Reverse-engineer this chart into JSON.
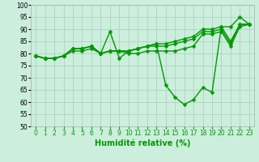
{
  "xlabel": "Humidité relative (%)",
  "background_color": "#cceedd",
  "grid_color": "#aaccbb",
  "line_color": "#009900",
  "xlim": [
    -0.5,
    23.5
  ],
  "ylim": [
    50,
    100
  ],
  "yticks": [
    50,
    55,
    60,
    65,
    70,
    75,
    80,
    85,
    90,
    95,
    100
  ],
  "xticks": [
    0,
    1,
    2,
    3,
    4,
    5,
    6,
    7,
    8,
    9,
    10,
    11,
    12,
    13,
    14,
    15,
    16,
    17,
    18,
    19,
    20,
    21,
    22,
    23
  ],
  "series": [
    [
      79,
      78,
      78,
      79,
      82,
      82,
      83,
      80,
      89,
      78,
      81,
      82,
      83,
      84,
      67,
      62,
      59,
      61,
      66,
      64,
      91,
      91,
      95,
      92
    ],
    [
      79,
      78,
      78,
      79,
      82,
      82,
      83,
      80,
      81,
      81,
      81,
      82,
      83,
      84,
      84,
      85,
      86,
      87,
      90,
      90,
      91,
      85,
      92,
      92
    ],
    [
      79,
      78,
      78,
      79,
      82,
      82,
      83,
      80,
      81,
      81,
      81,
      82,
      83,
      83,
      83,
      84,
      85,
      86,
      89,
      89,
      90,
      84,
      92,
      92
    ],
    [
      79,
      78,
      78,
      79,
      81,
      81,
      82,
      80,
      81,
      81,
      80,
      80,
      81,
      81,
      81,
      81,
      82,
      83,
      88,
      88,
      89,
      83,
      91,
      92
    ]
  ],
  "xlabel_color": "#009900",
  "xlabel_fontsize": 7,
  "tick_fontsize": 5.5,
  "tick_color": "#009900",
  "linewidth": 1.0,
  "markersize": 2.5
}
